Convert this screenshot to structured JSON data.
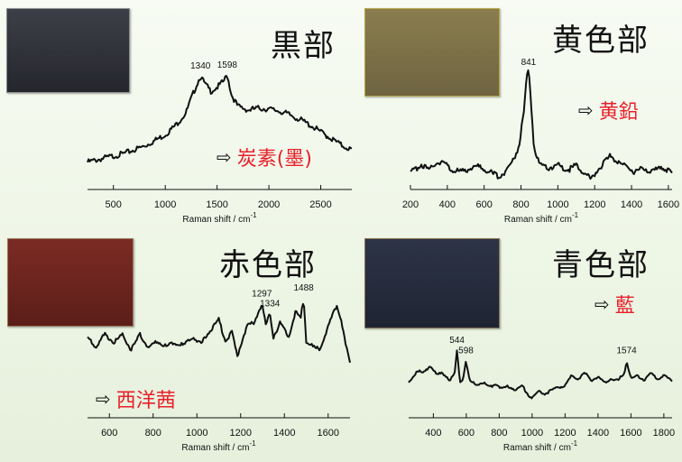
{
  "panels": [
    {
      "title": "黒部",
      "result": "炭素(墨)",
      "photo": {
        "color_top": "#3d3f48",
        "color_bottom": "#25262d",
        "border": "#8d8d8d"
      },
      "annotations": [
        {
          "x": 1340,
          "label": "1340"
        },
        {
          "x": 1598,
          "label": "1598"
        }
      ]
    },
    {
      "title": "黄色部",
      "result": "黄鉛",
      "photo": {
        "color_top": "#8a7d4f",
        "color_bottom": "#6e6440",
        "border": "#b8a94a"
      },
      "annotations": [
        {
          "x": 841,
          "label": "841"
        }
      ]
    },
    {
      "title": "赤色部",
      "result": "西洋茜",
      "photo": {
        "color_top": "#7b2b24",
        "color_bottom": "#5c1e19",
        "border": "#9c7d5e"
      },
      "annotations": [
        {
          "x": 1297,
          "label": "1297"
        },
        {
          "x": 1334,
          "label": "1334"
        },
        {
          "x": 1488,
          "label": "1488"
        }
      ]
    },
    {
      "title": "青色部",
      "result": "藍",
      "photo": {
        "color_top": "#2d3446",
        "color_bottom": "#1e2433",
        "border": "#8c7355"
      },
      "annotations": [
        {
          "x": 544,
          "label": "544"
        },
        {
          "x": 598,
          "label": "598"
        },
        {
          "x": 1574,
          "label": "1574"
        }
      ]
    }
  ],
  "chart_data": [
    {
      "type": "line",
      "xlabel": "Raman shift / cm",
      "xlabel_sup": "-1",
      "xlim": [
        250,
        2800
      ],
      "xticks": [
        500,
        1000,
        1500,
        2000,
        2500
      ],
      "series": [
        {
          "x": [
            250,
            400,
            600,
            800,
            1000,
            1100,
            1200,
            1250,
            1300,
            1340,
            1380,
            1440,
            1500,
            1560,
            1598,
            1640,
            1700,
            1800,
            1900,
            2000,
            2100,
            2200,
            2300,
            2400,
            2500,
            2600,
            2700,
            2800
          ],
          "y": [
            0.05,
            0.09,
            0.14,
            0.22,
            0.34,
            0.44,
            0.57,
            0.72,
            0.86,
            0.96,
            0.88,
            0.8,
            0.84,
            0.9,
            0.97,
            0.76,
            0.64,
            0.6,
            0.62,
            0.61,
            0.59,
            0.55,
            0.5,
            0.44,
            0.37,
            0.3,
            0.23,
            0.18
          ]
        }
      ]
    },
    {
      "type": "line",
      "xlabel": "Raman shift / cm",
      "xlabel_sup": "-1",
      "xlim": [
        200,
        1620
      ],
      "xticks": [
        200,
        400,
        600,
        800,
        1000,
        1200,
        1400,
        1600
      ],
      "series": [
        {
          "x": [
            200,
            260,
            300,
            340,
            380,
            420,
            480,
            540,
            600,
            640,
            680,
            720,
            760,
            790,
            815,
            830,
            841,
            852,
            870,
            900,
            950,
            1000,
            1050,
            1100,
            1150,
            1180,
            1220,
            1260,
            1290,
            1330,
            1380,
            1420,
            1470,
            1520,
            1560,
            1620
          ],
          "y": [
            0.05,
            0.14,
            0.07,
            0.16,
            0.15,
            0.09,
            0.06,
            0.12,
            0.1,
            0.05,
            0.02,
            0.08,
            0.18,
            0.32,
            0.62,
            0.95,
            1.0,
            0.8,
            0.3,
            0.12,
            0.1,
            0.13,
            0.08,
            0.12,
            0.05,
            -0.02,
            0.1,
            0.16,
            0.22,
            0.14,
            0.12,
            0.06,
            0.1,
            0.06,
            0.12,
            0.05
          ]
        }
      ]
    },
    {
      "type": "line",
      "xlabel": "Raman shift / cm",
      "xlabel_sup": "-1",
      "xlim": [
        500,
        1700
      ],
      "xticks": [
        600,
        800,
        1000,
        1200,
        1400,
        1600
      ],
      "series": [
        {
          "x": [
            500,
            540,
            580,
            620,
            660,
            700,
            740,
            780,
            820,
            860,
            900,
            940,
            980,
            1020,
            1060,
            1100,
            1130,
            1160,
            1185,
            1200,
            1230,
            1260,
            1297,
            1315,
            1334,
            1350,
            1380,
            1420,
            1450,
            1475,
            1488,
            1500,
            1530,
            1560,
            1600,
            1640,
            1660,
            1680,
            1700
          ],
          "y": [
            0.45,
            0.32,
            0.5,
            0.38,
            0.48,
            0.28,
            0.49,
            0.3,
            0.4,
            0.32,
            0.38,
            0.34,
            0.46,
            0.36,
            0.55,
            0.7,
            0.4,
            0.52,
            0.18,
            0.35,
            0.62,
            0.65,
            0.92,
            0.62,
            0.78,
            0.46,
            0.65,
            0.46,
            0.8,
            0.72,
            1.0,
            0.4,
            0.32,
            0.28,
            0.6,
            0.9,
            0.7,
            0.35,
            0.1
          ]
        }
      ]
    },
    {
      "type": "line",
      "xlabel": "Raman shift / cm",
      "xlabel_sup": "-1",
      "xlim": [
        250,
        1850
      ],
      "xticks": [
        400,
        600,
        800,
        1000,
        1200,
        1400,
        1600,
        1800
      ],
      "series": [
        {
          "x": [
            250,
            300,
            340,
            380,
            420,
            460,
            500,
            530,
            544,
            560,
            580,
            598,
            620,
            660,
            700,
            740,
            780,
            820,
            860,
            900,
            940,
            980,
            1000,
            1040,
            1080,
            1120,
            1160,
            1200,
            1240,
            1280,
            1320,
            1360,
            1400,
            1440,
            1480,
            1520,
            1560,
            1574,
            1600,
            1640,
            1680,
            1720,
            1760,
            1800,
            1850
          ],
          "y": [
            0.35,
            0.6,
            0.55,
            0.7,
            0.52,
            0.55,
            0.42,
            0.55,
            1.0,
            0.38,
            0.45,
            0.8,
            0.4,
            0.32,
            0.38,
            0.28,
            0.35,
            0.25,
            0.3,
            0.22,
            0.3,
            0.12,
            0.08,
            0.2,
            0.15,
            0.22,
            0.28,
            0.3,
            0.5,
            0.45,
            0.55,
            0.42,
            0.48,
            0.35,
            0.45,
            0.4,
            0.55,
            0.8,
            0.45,
            0.5,
            0.42,
            0.55,
            0.45,
            0.5,
            0.4
          ]
        }
      ]
    }
  ]
}
